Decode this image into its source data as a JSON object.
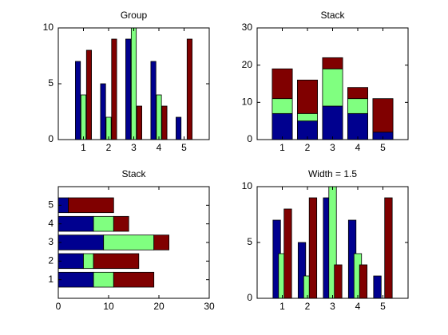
{
  "chart_data": [
    {
      "type": "bar",
      "title": "Group",
      "stacked": false,
      "orientation": "vertical",
      "x": [
        1,
        2,
        3,
        4,
        5
      ],
      "xlim": [
        0,
        6
      ],
      "xticks": [
        1,
        2,
        3,
        4,
        5
      ],
      "ylim": [
        0,
        10
      ],
      "yticks": [
        0,
        5,
        10
      ],
      "series": [
        {
          "color": "#00008f",
          "values": [
            7,
            5,
            9,
            7,
            2
          ]
        },
        {
          "color": "#80ff80",
          "values": [
            4,
            2,
            10,
            4,
            0
          ]
        },
        {
          "color": "#800000",
          "values": [
            8,
            9,
            3,
            3,
            9
          ]
        }
      ]
    },
    {
      "type": "bar",
      "title": "Stack",
      "stacked": true,
      "orientation": "vertical",
      "x": [
        1,
        2,
        3,
        4,
        5
      ],
      "xlim": [
        0,
        6
      ],
      "xticks": [
        1,
        2,
        3,
        4,
        5
      ],
      "ylim": [
        0,
        30
      ],
      "yticks": [
        0,
        10,
        20,
        30
      ],
      "series": [
        {
          "color": "#00008f",
          "values": [
            7,
            5,
            9,
            7,
            2
          ]
        },
        {
          "color": "#80ff80",
          "values": [
            4,
            2,
            10,
            4,
            0
          ]
        },
        {
          "color": "#800000",
          "values": [
            8,
            9,
            3,
            3,
            9
          ]
        }
      ]
    },
    {
      "type": "bar",
      "title": "Stack",
      "stacked": true,
      "orientation": "horizontal",
      "y": [
        1,
        2,
        3,
        4,
        5
      ],
      "ylim": [
        0,
        6
      ],
      "yticks": [
        1,
        2,
        3,
        4,
        5
      ],
      "xlim": [
        0,
        30
      ],
      "xticks": [
        0,
        10,
        20,
        30
      ],
      "series": [
        {
          "color": "#00008f",
          "values": [
            7,
            5,
            9,
            7,
            2
          ]
        },
        {
          "color": "#80ff80",
          "values": [
            4,
            2,
            10,
            4,
            0
          ]
        },
        {
          "color": "#800000",
          "values": [
            8,
            9,
            3,
            3,
            9
          ]
        }
      ]
    },
    {
      "type": "bar",
      "title": "Width = 1.5",
      "stacked": false,
      "orientation": "vertical",
      "x": [
        1,
        2,
        3,
        4,
        5
      ],
      "xlim": [
        0,
        6
      ],
      "xticks": [
        1,
        2,
        3,
        4,
        5
      ],
      "ylim": [
        0,
        10
      ],
      "yticks": [
        0,
        5,
        10
      ],
      "series": [
        {
          "color": "#00008f",
          "values": [
            7,
            5,
            9,
            7,
            2
          ]
        },
        {
          "color": "#80ff80",
          "values": [
            4,
            2,
            10,
            4,
            0
          ]
        },
        {
          "color": "#800000",
          "values": [
            8,
            9,
            3,
            3,
            9
          ]
        }
      ]
    }
  ]
}
